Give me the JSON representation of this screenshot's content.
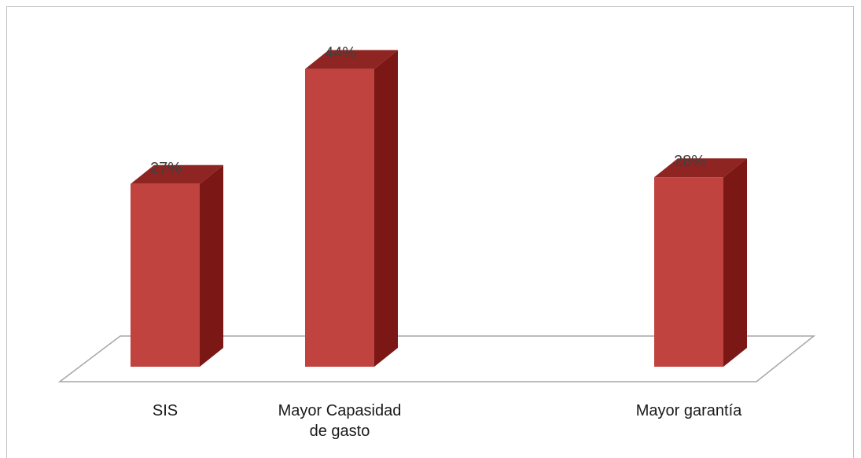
{
  "chart_data": {
    "type": "bar",
    "style": "3d-column",
    "categories": [
      "SIS",
      "Mayor Capasidad de gasto",
      "",
      "Mayor garantía"
    ],
    "category_lines": [
      [
        "SIS"
      ],
      [
        "Mayor Capasidad",
        "de gasto"
      ],
      [],
      [
        "Mayor garantía"
      ]
    ],
    "values": [
      27,
      44,
      null,
      28
    ],
    "data_labels": [
      "27%",
      "44%",
      "",
      "28%"
    ],
    "unit": "%",
    "ylim": [
      0,
      50
    ],
    "grid": false,
    "legend": "none",
    "colors": {
      "bar_front": "#c0433f",
      "bar_side": "#7b1714",
      "bar_top": "#8e2522",
      "floor_stroke": "#a6a6a6",
      "frame": "#bfbfbf"
    }
  }
}
